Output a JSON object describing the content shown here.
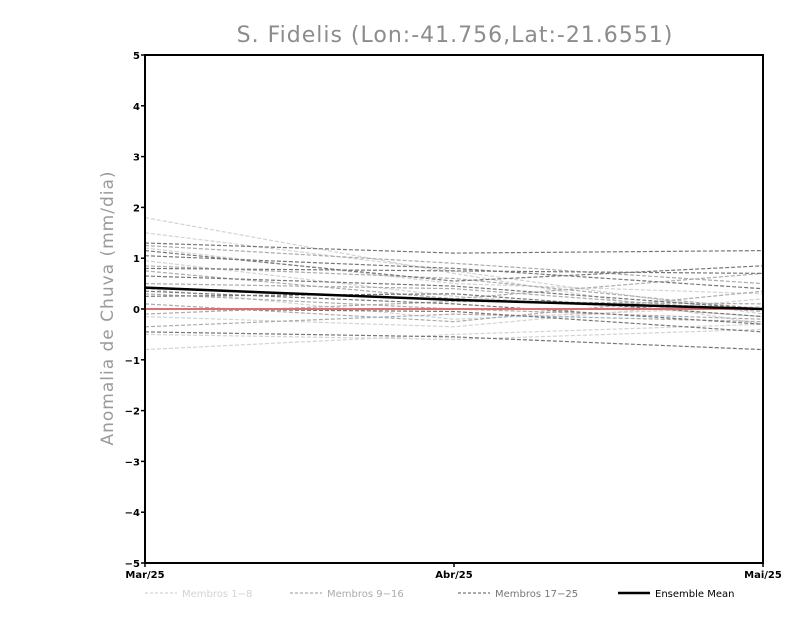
{
  "chart_data": {
    "type": "line",
    "title": "S. Fidelis (Lon:-41.756,Lat:-21.6551)",
    "ylabel": "Anomalia de Chuva (mm/dia)",
    "xlabel": "",
    "categories": [
      "Mar/25",
      "Abr/25",
      "Mai/25"
    ],
    "ylim": [
      -5,
      5
    ],
    "yticks": [
      -5,
      -4,
      -3,
      -2,
      -1,
      0,
      1,
      2,
      3,
      4,
      5
    ],
    "grid": false,
    "zero_line": 0,
    "legend_position": "bottom",
    "legend": [
      {
        "label": "Membros 1-8",
        "color": "#d3d3d3",
        "style": "dashed"
      },
      {
        "label": "Membros 9-16",
        "color": "#ababab",
        "style": "dashed"
      },
      {
        "label": "Membros 17-25",
        "color": "#777777",
        "style": "dashed"
      },
      {
        "label": "Ensemble Mean",
        "color": "#000000",
        "style": "solid"
      }
    ],
    "groups": [
      {
        "color": "#d3d3d3",
        "members": [
          [
            1.8,
            0.7,
            -0.3
          ],
          [
            1.5,
            0.75,
            -0.1
          ],
          [
            1.2,
            0.5,
            0.3
          ],
          [
            0.95,
            0.25,
            -0.15
          ],
          [
            0.4,
            -0.2,
            0.05
          ],
          [
            -0.15,
            -0.35,
            0.2
          ],
          [
            -0.5,
            -0.6,
            -0.4
          ],
          [
            -0.8,
            -0.5,
            -0.3
          ]
        ]
      },
      {
        "color": "#ababab",
        "members": [
          [
            1.25,
            0.9,
            0.5
          ],
          [
            0.85,
            0.6,
            0.0
          ],
          [
            0.75,
            0.2,
            0.7
          ],
          [
            0.5,
            0.4,
            -0.05
          ],
          [
            0.3,
            0.0,
            -0.2
          ],
          [
            0.1,
            -0.25,
            0.35
          ],
          [
            -0.1,
            0.15,
            0.1
          ],
          [
            -0.35,
            -0.1,
            -0.25
          ]
        ]
      },
      {
        "color": "#777777",
        "members": [
          [
            1.3,
            1.1,
            1.15
          ],
          [
            1.15,
            0.55,
            0.85
          ],
          [
            1.05,
            0.8,
            0.4
          ],
          [
            0.8,
            0.75,
            0.7
          ],
          [
            0.65,
            0.45,
            0.0
          ],
          [
            0.35,
            0.1,
            -0.3
          ],
          [
            0.25,
            0.3,
            -0.15
          ],
          [
            0.0,
            -0.05,
            -0.45
          ],
          [
            -0.45,
            -0.55,
            -0.8
          ]
        ]
      }
    ],
    "ensemble_mean": {
      "name": "Ensemble Mean",
      "values": [
        0.42,
        0.18,
        0.0
      ],
      "color": "#000000"
    },
    "zero_line_color": "#e07070"
  }
}
